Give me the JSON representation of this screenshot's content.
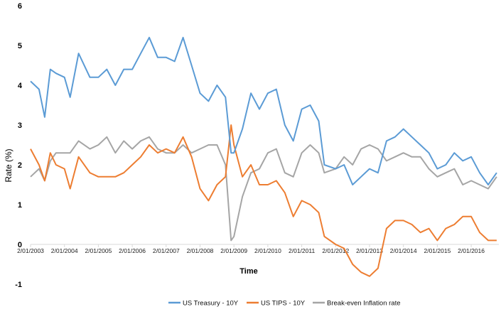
{
  "chart_data": {
    "type": "line",
    "title": "",
    "xlabel": "Time",
    "ylabel": "Rate (%)",
    "ylim": [
      -1,
      6
    ],
    "yticks": [
      "-1",
      "0",
      "1",
      "2",
      "3",
      "4",
      "5",
      "6"
    ],
    "xticks": [
      "2/01/2003",
      "2/01/2004",
      "2/01/2005",
      "2/01/2006",
      "2/01/2007",
      "2/01/2008",
      "2/01/2009",
      "2/01/2010",
      "2/01/2011",
      "2/01/2012",
      "2/01/2013",
      "2/01/2014",
      "2/01/2015",
      "2/01/2016"
    ],
    "grid": false,
    "legend_position": "bottom",
    "x": [
      "2003-01",
      "2003-04",
      "2003-06",
      "2003-08",
      "2003-10",
      "2004-01",
      "2004-03",
      "2004-06",
      "2004-10",
      "2005-01",
      "2005-04",
      "2005-07",
      "2005-10",
      "2006-01",
      "2006-04",
      "2006-07",
      "2006-10",
      "2007-01",
      "2007-04",
      "2007-07",
      "2007-10",
      "2008-01",
      "2008-04",
      "2008-07",
      "2008-10",
      "2008-12",
      "2009-01",
      "2009-04",
      "2009-07",
      "2009-10",
      "2010-01",
      "2010-04",
      "2010-07",
      "2010-10",
      "2011-01",
      "2011-04",
      "2011-07",
      "2011-09",
      "2012-01",
      "2012-04",
      "2012-07",
      "2012-10",
      "2013-01",
      "2013-04",
      "2013-07",
      "2013-10",
      "2014-01",
      "2014-04",
      "2014-07",
      "2014-10",
      "2015-01",
      "2015-04",
      "2015-07",
      "2015-10",
      "2016-01",
      "2016-04",
      "2016-07",
      "2016-10"
    ],
    "series": [
      {
        "name": "US Treasury - 10Y",
        "color": "#5b9bd5",
        "values": [
          4.1,
          3.9,
          3.2,
          4.4,
          4.3,
          4.2,
          3.7,
          4.8,
          4.2,
          4.2,
          4.4,
          4.0,
          4.4,
          4.4,
          4.8,
          5.2,
          4.7,
          4.7,
          4.6,
          5.2,
          4.5,
          3.8,
          3.6,
          4.0,
          3.7,
          2.3,
          2.3,
          2.9,
          3.8,
          3.4,
          3.8,
          3.9,
          3.0,
          2.6,
          3.4,
          3.5,
          3.1,
          2.0,
          1.9,
          2.0,
          1.5,
          1.7,
          1.9,
          1.8,
          2.6,
          2.7,
          2.9,
          2.7,
          2.5,
          2.3,
          1.9,
          2.0,
          2.3,
          2.1,
          2.2,
          1.8,
          1.5,
          1.8
        ]
      },
      {
        "name": "US TIPS - 10Y",
        "color": "#ed7d31",
        "values": [
          2.4,
          2.0,
          1.6,
          2.3,
          2.0,
          1.9,
          1.4,
          2.2,
          1.8,
          1.7,
          1.7,
          1.7,
          1.8,
          2.0,
          2.2,
          2.5,
          2.3,
          2.4,
          2.3,
          2.7,
          2.2,
          1.4,
          1.1,
          1.5,
          1.7,
          3.0,
          2.5,
          1.7,
          2.0,
          1.5,
          1.5,
          1.6,
          1.3,
          0.7,
          1.1,
          1.0,
          0.8,
          0.2,
          0.0,
          -0.1,
          -0.5,
          -0.7,
          -0.8,
          -0.6,
          0.4,
          0.6,
          0.6,
          0.5,
          0.3,
          0.4,
          0.1,
          0.4,
          0.5,
          0.7,
          0.7,
          0.3,
          0.1,
          0.1
        ]
      },
      {
        "name": "Break-even Inflation rate",
        "color": "#a5a5a5",
        "values": [
          1.7,
          1.9,
          1.6,
          2.1,
          2.3,
          2.3,
          2.3,
          2.6,
          2.4,
          2.5,
          2.7,
          2.3,
          2.6,
          2.4,
          2.6,
          2.7,
          2.4,
          2.3,
          2.3,
          2.5,
          2.3,
          2.4,
          2.5,
          2.5,
          2.0,
          0.1,
          0.2,
          1.2,
          1.8,
          1.9,
          2.3,
          2.4,
          1.8,
          1.7,
          2.3,
          2.5,
          2.3,
          1.8,
          1.9,
          2.2,
          2.0,
          2.4,
          2.5,
          2.4,
          2.1,
          2.2,
          2.3,
          2.2,
          2.2,
          1.9,
          1.7,
          1.8,
          1.9,
          1.5,
          1.6,
          1.5,
          1.4,
          1.7
        ]
      }
    ]
  }
}
